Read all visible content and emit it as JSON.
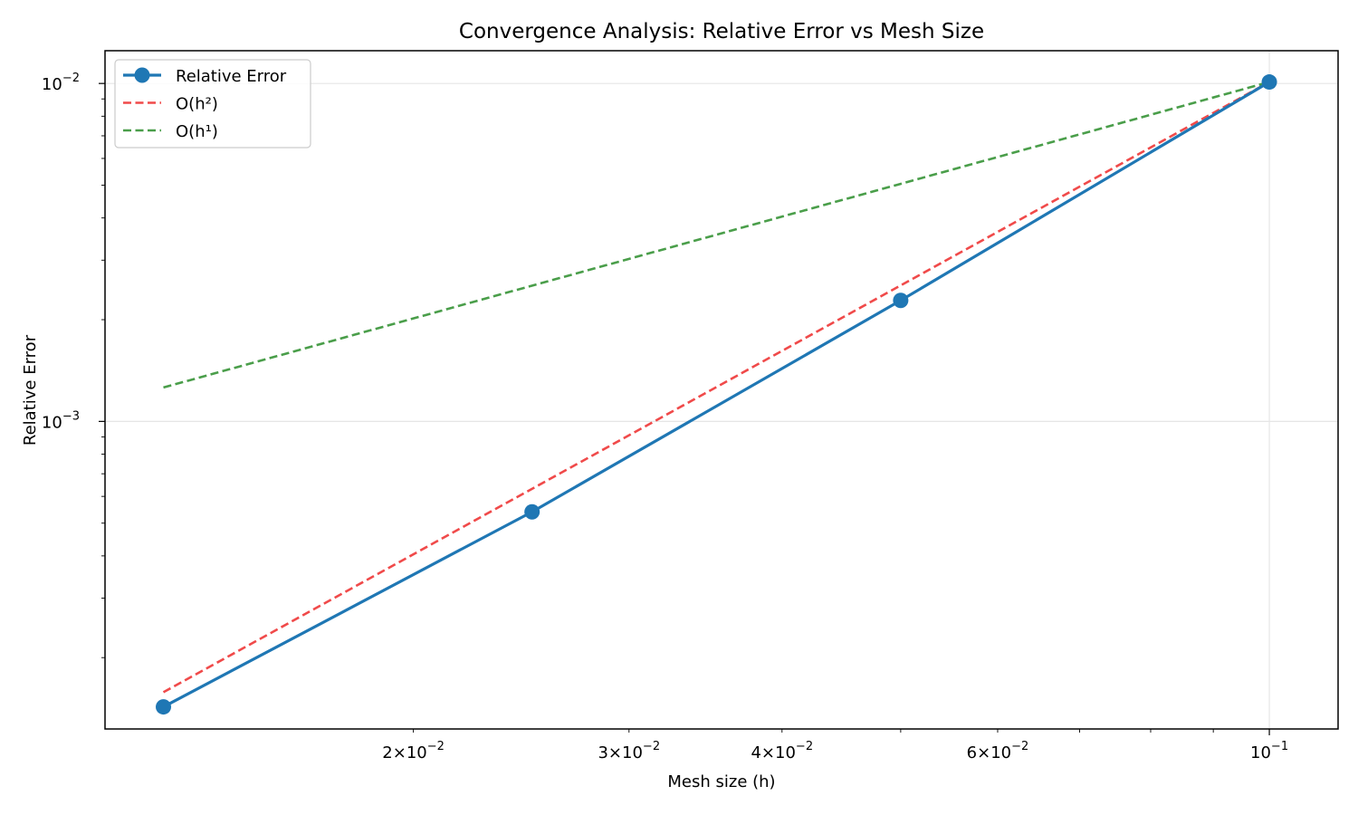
{
  "chart_data": {
    "type": "line",
    "title": "Convergence Analysis: Relative Error vs Mesh Size",
    "xlabel": "Mesh size (h)",
    "ylabel": "Relative Error",
    "xscale": "log",
    "yscale": "log",
    "xlim": [
      0.0112,
      0.1138
    ],
    "ylim": [
      0.000123,
      0.0125
    ],
    "grid": true,
    "legend_position": "upper-left",
    "x_ticks": [
      {
        "value": 0.02,
        "mantissa": "2",
        "base": "10",
        "exp": "−2"
      },
      {
        "value": 0.03,
        "mantissa": "3",
        "base": "10",
        "exp": "−2"
      },
      {
        "value": 0.04,
        "mantissa": "4",
        "base": "10",
        "exp": "−2"
      },
      {
        "value": 0.06,
        "mantissa": "6",
        "base": "10",
        "exp": "−2"
      },
      {
        "value": 0.1,
        "mantissa": "",
        "base": "10",
        "exp": "−1"
      }
    ],
    "y_ticks": [
      {
        "value": 0.01,
        "base": "10",
        "exp": "−2"
      },
      {
        "value": 0.001,
        "base": "10",
        "exp": "−3"
      }
    ],
    "series": [
      {
        "name": "Relative Error",
        "color": "#1f77b4",
        "style": "solid-markers",
        "x": [
          0.0125,
          0.025,
          0.05,
          0.1
        ],
        "y": [
          0.000143,
          0.00054,
          0.00228,
          0.0101
        ]
      },
      {
        "name": "O(h²)",
        "color": "#f04a4a",
        "style": "dashed",
        "x": [
          0.0125,
          0.1
        ],
        "y": [
          0.000158,
          0.0101
        ]
      },
      {
        "name": "O(h¹)",
        "color": "#4a9e4a",
        "style": "dashed",
        "x": [
          0.0125,
          0.1
        ],
        "y": [
          0.00126,
          0.0101
        ]
      }
    ]
  }
}
